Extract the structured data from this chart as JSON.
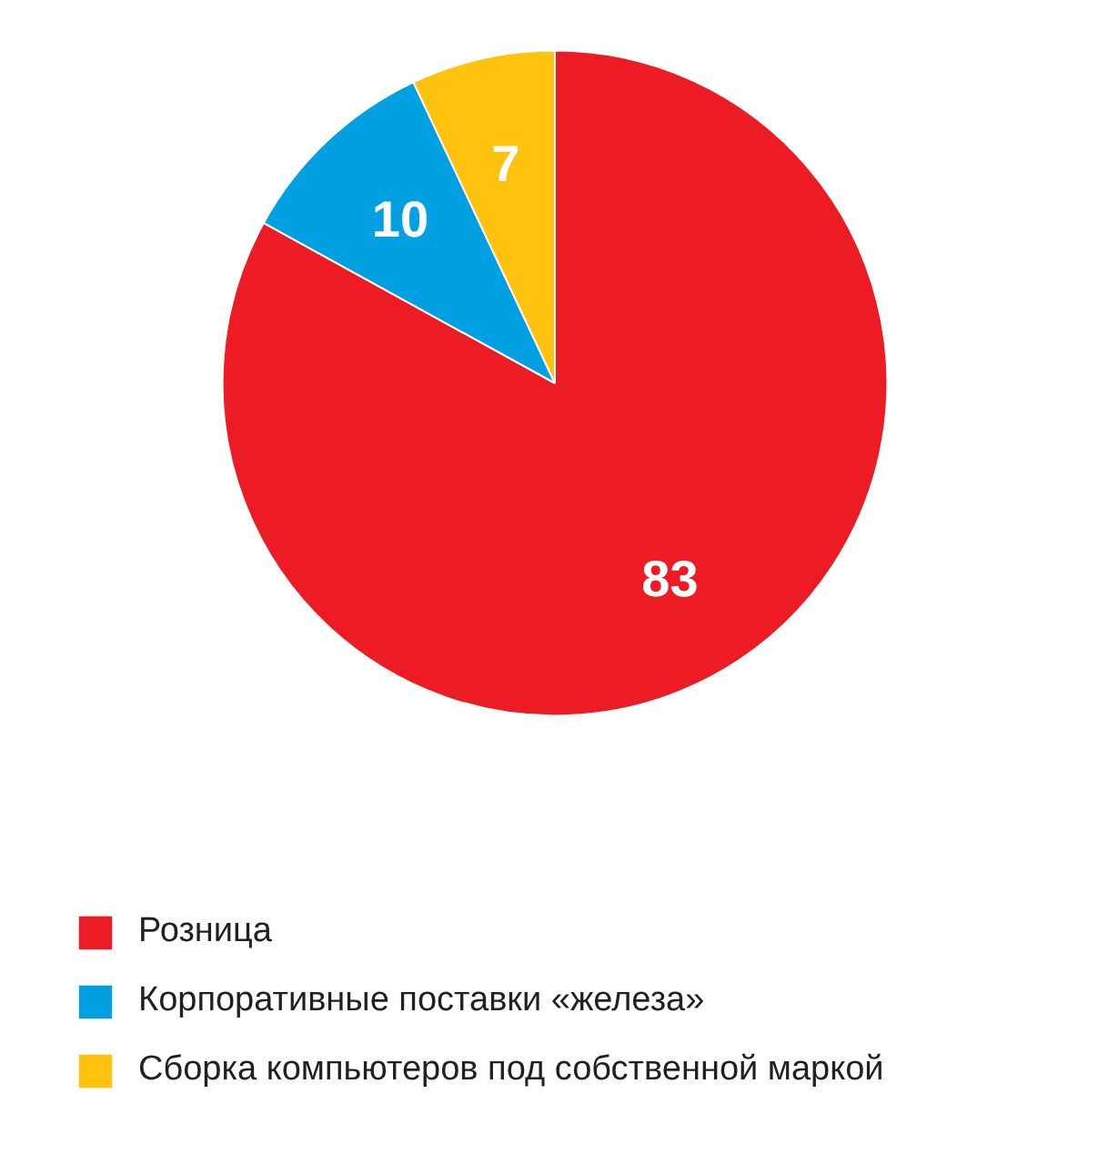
{
  "chart_data": {
    "type": "pie",
    "categories": [
      "Розница",
      "Корпоративные поставки «железа»",
      "Сборка компьютеров под собственной маркой"
    ],
    "values": [
      83,
      10,
      7
    ],
    "colors": [
      "#ed1c24",
      "#00a0e3",
      "#ffc20e"
    ],
    "data_labels": true,
    "legend": "bottom"
  }
}
